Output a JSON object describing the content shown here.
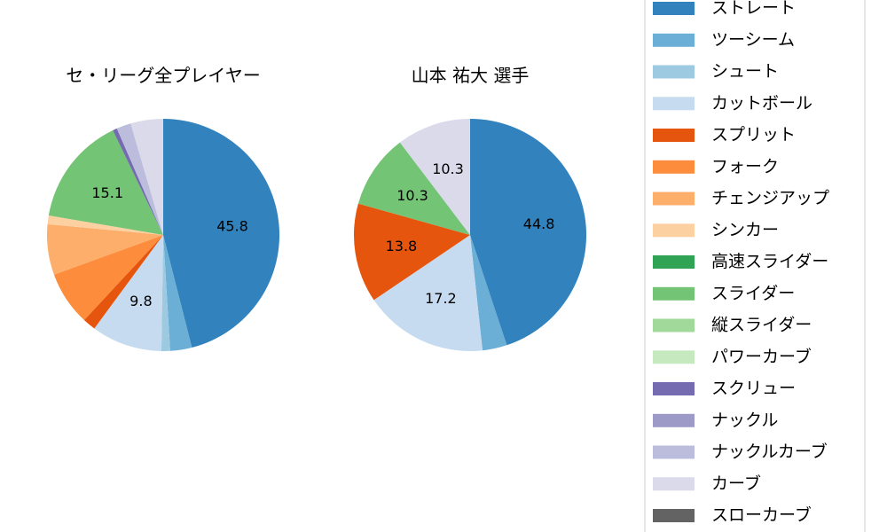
{
  "legend": {
    "placement": "right",
    "items": [
      {
        "label": "ストレート",
        "color": "#3182bd"
      },
      {
        "label": "ツーシーム",
        "color": "#6baed6"
      },
      {
        "label": "シュート",
        "color": "#9ecae1"
      },
      {
        "label": "カットボール",
        "color": "#c6dbef"
      },
      {
        "label": "スプリット",
        "color": "#e6550d"
      },
      {
        "label": "フォーク",
        "color": "#fd8d3c"
      },
      {
        "label": "チェンジアップ",
        "color": "#fdae6b"
      },
      {
        "label": "シンカー",
        "color": "#fdd0a2"
      },
      {
        "label": "高速スライダー",
        "color": "#31a354"
      },
      {
        "label": "スライダー",
        "color": "#74c476"
      },
      {
        "label": "縦スライダー",
        "color": "#a1d99b"
      },
      {
        "label": "パワーカーブ",
        "color": "#c7e9c0"
      },
      {
        "label": "スクリュー",
        "color": "#756bb1"
      },
      {
        "label": "ナックル",
        "color": "#9e9ac8"
      },
      {
        "label": "ナックルカーブ",
        "color": "#bcbddc"
      },
      {
        "label": "カーブ",
        "color": "#dadaeb"
      },
      {
        "label": "スローカーブ",
        "color": "#636363"
      }
    ]
  },
  "chart_data": [
    {
      "type": "pie",
      "title": "セ・リーグ全プレイヤー",
      "start_angle_deg": 90,
      "direction": "clockwise",
      "slices": [
        {
          "name": "ストレート",
          "value": 45.8,
          "label": "45.8"
        },
        {
          "name": "ツーシーム",
          "value": 3.0,
          "label": ""
        },
        {
          "name": "シュート",
          "value": 1.2,
          "label": ""
        },
        {
          "name": "カットボール",
          "value": 9.8,
          "label": "9.8"
        },
        {
          "name": "スプリット",
          "value": 1.8,
          "label": ""
        },
        {
          "name": "フォーク",
          "value": 7.5,
          "label": ""
        },
        {
          "name": "チェンジアップ",
          "value": 7.0,
          "label": ""
        },
        {
          "name": "シンカー",
          "value": 1.2,
          "label": ""
        },
        {
          "name": "高速スライダー",
          "value": 0.0,
          "label": ""
        },
        {
          "name": "スライダー",
          "value": 15.1,
          "label": "15.1"
        },
        {
          "name": "縦スライダー",
          "value": 0.0,
          "label": ""
        },
        {
          "name": "パワーカーブ",
          "value": 0.0,
          "label": ""
        },
        {
          "name": "スクリュー",
          "value": 0.6,
          "label": ""
        },
        {
          "name": "ナックル",
          "value": 0.0,
          "label": ""
        },
        {
          "name": "ナックルカーブ",
          "value": 2.0,
          "label": ""
        },
        {
          "name": "カーブ",
          "value": 4.5,
          "label": ""
        },
        {
          "name": "スローカーブ",
          "value": 0.0,
          "label": ""
        }
      ]
    },
    {
      "type": "pie",
      "title": "山本 祐大  選手",
      "start_angle_deg": 90,
      "direction": "clockwise",
      "slices": [
        {
          "name": "ストレート",
          "value": 44.8,
          "label": "44.8"
        },
        {
          "name": "ツーシーム",
          "value": 3.4,
          "label": ""
        },
        {
          "name": "カットボール",
          "value": 17.2,
          "label": "17.2"
        },
        {
          "name": "スプリット",
          "value": 13.8,
          "label": "13.8"
        },
        {
          "name": "スライダー",
          "value": 10.3,
          "label": "10.3"
        },
        {
          "name": "カーブ",
          "value": 10.3,
          "label": "10.3"
        }
      ]
    }
  ]
}
